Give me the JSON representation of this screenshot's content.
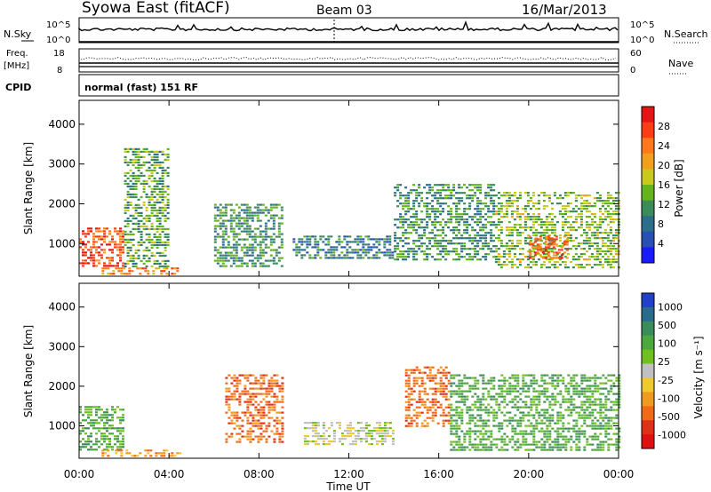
{
  "header": {
    "station": "Syowa East (fitACF)",
    "beam": "Beam 03",
    "date": "16/Mar/2013"
  },
  "nsky_panel": {
    "label": "N.Sky",
    "right_label": "N.Search",
    "left_ticks": [
      "10^5",
      "10^0"
    ],
    "right_ticks": [
      "10^5",
      "10^0"
    ]
  },
  "freq_panel": {
    "label_line1": "Freq.",
    "label_line2": "[MHz]",
    "left_ticks": [
      "18",
      "8"
    ],
    "right_label": "Nave",
    "right_ticks": [
      "60",
      "0"
    ]
  },
  "cpid": {
    "label": "CPID",
    "value": "normal (fast) 151 RF"
  },
  "x_axis": {
    "label": "Time UT",
    "ticks": [
      "00:00",
      "04:00",
      "08:00",
      "12:00",
      "16:00",
      "20:00",
      "00:00"
    ]
  },
  "power_panel": {
    "ylabel": "Slant Range [km]",
    "yticks": [
      "1000",
      "2000",
      "3000",
      "4000"
    ],
    "colorbar_label": "Power [dB]",
    "colorbar_ticks": [
      "4",
      "8",
      "12",
      "16",
      "20",
      "24",
      "28"
    ],
    "colors": [
      "#1a1aff",
      "#2850b4",
      "#2d6e8c",
      "#3c8c5a",
      "#64b41e",
      "#c8c81e",
      "#f0a01e",
      "#ff781e",
      "#ff3c14",
      "#e61414"
    ]
  },
  "velocity_panel": {
    "ylabel": "Slant Range [km]",
    "yticks": [
      "1000",
      "2000",
      "3000",
      "4000"
    ],
    "colorbar_label": "Velocity [m s⁻¹]",
    "colorbar_ticks": [
      "1000",
      "500",
      "100",
      "25",
      "-25",
      "-100",
      "-500",
      "-1000"
    ],
    "colors": [
      "#2040c8",
      "#2a6a8a",
      "#3c8c5a",
      "#4ca83c",
      "#70c020",
      "#c0c0c0",
      "#f0c830",
      "#f09a20",
      "#f06a18",
      "#e03018",
      "#e01010"
    ]
  },
  "chart_data": [
    {
      "type": "heatmap",
      "title": "Power",
      "xlabel": "Time UT",
      "ylabel": "Slant Range [km]",
      "xlim": [
        "00:00",
        "24:00"
      ],
      "ylim": [
        180,
        4600
      ],
      "colorbar": "Power [dB]",
      "color_range": [
        0,
        30
      ],
      "regions": [
        {
          "t0": 0.0,
          "t1": 1.9,
          "r0": 400,
          "r1": 1400,
          "value": 26
        },
        {
          "t0": 1.0,
          "t1": 4.5,
          "r0": 200,
          "r1": 400,
          "value": 22
        },
        {
          "t0": 2.0,
          "t1": 3.9,
          "r0": 400,
          "r1": 3400,
          "value": 12
        },
        {
          "t0": 6.0,
          "t1": 9.0,
          "r0": 400,
          "r1": 2000,
          "value": 10
        },
        {
          "t0": 9.5,
          "t1": 14.0,
          "r0": 600,
          "r1": 1200,
          "value": 8
        },
        {
          "t0": 14.0,
          "t1": 18.5,
          "r0": 600,
          "r1": 2500,
          "value": 10
        },
        {
          "t0": 18.5,
          "t1": 24.0,
          "r0": 400,
          "r1": 2300,
          "value": 14
        },
        {
          "t0": 20.0,
          "t1": 21.7,
          "r0": 600,
          "r1": 1200,
          "value": 24
        }
      ]
    },
    {
      "type": "heatmap",
      "title": "Velocity",
      "xlabel": "Time UT",
      "ylabel": "Slant Range [km]",
      "xlim": [
        "00:00",
        "24:00"
      ],
      "ylim": [
        180,
        4600
      ],
      "colorbar": "Velocity [m s-1]",
      "color_range": [
        -1000,
        1000
      ],
      "regions": [
        {
          "t0": 0.0,
          "t1": 1.9,
          "r0": 400,
          "r1": 1500,
          "value": 100
        },
        {
          "t0": 1.0,
          "t1": 4.5,
          "r0": 200,
          "r1": 400,
          "value": -100
        },
        {
          "t0": 6.5,
          "t1": 9.0,
          "r0": 600,
          "r1": 2300,
          "value": -500
        },
        {
          "t0": 10.0,
          "t1": 14.0,
          "r0": 500,
          "r1": 1100,
          "value": 25
        },
        {
          "t0": 14.5,
          "t1": 16.5,
          "r0": 1000,
          "r1": 2500,
          "value": -500
        },
        {
          "t0": 16.5,
          "t1": 24.0,
          "r0": 400,
          "r1": 2300,
          "value": 100
        }
      ]
    }
  ]
}
